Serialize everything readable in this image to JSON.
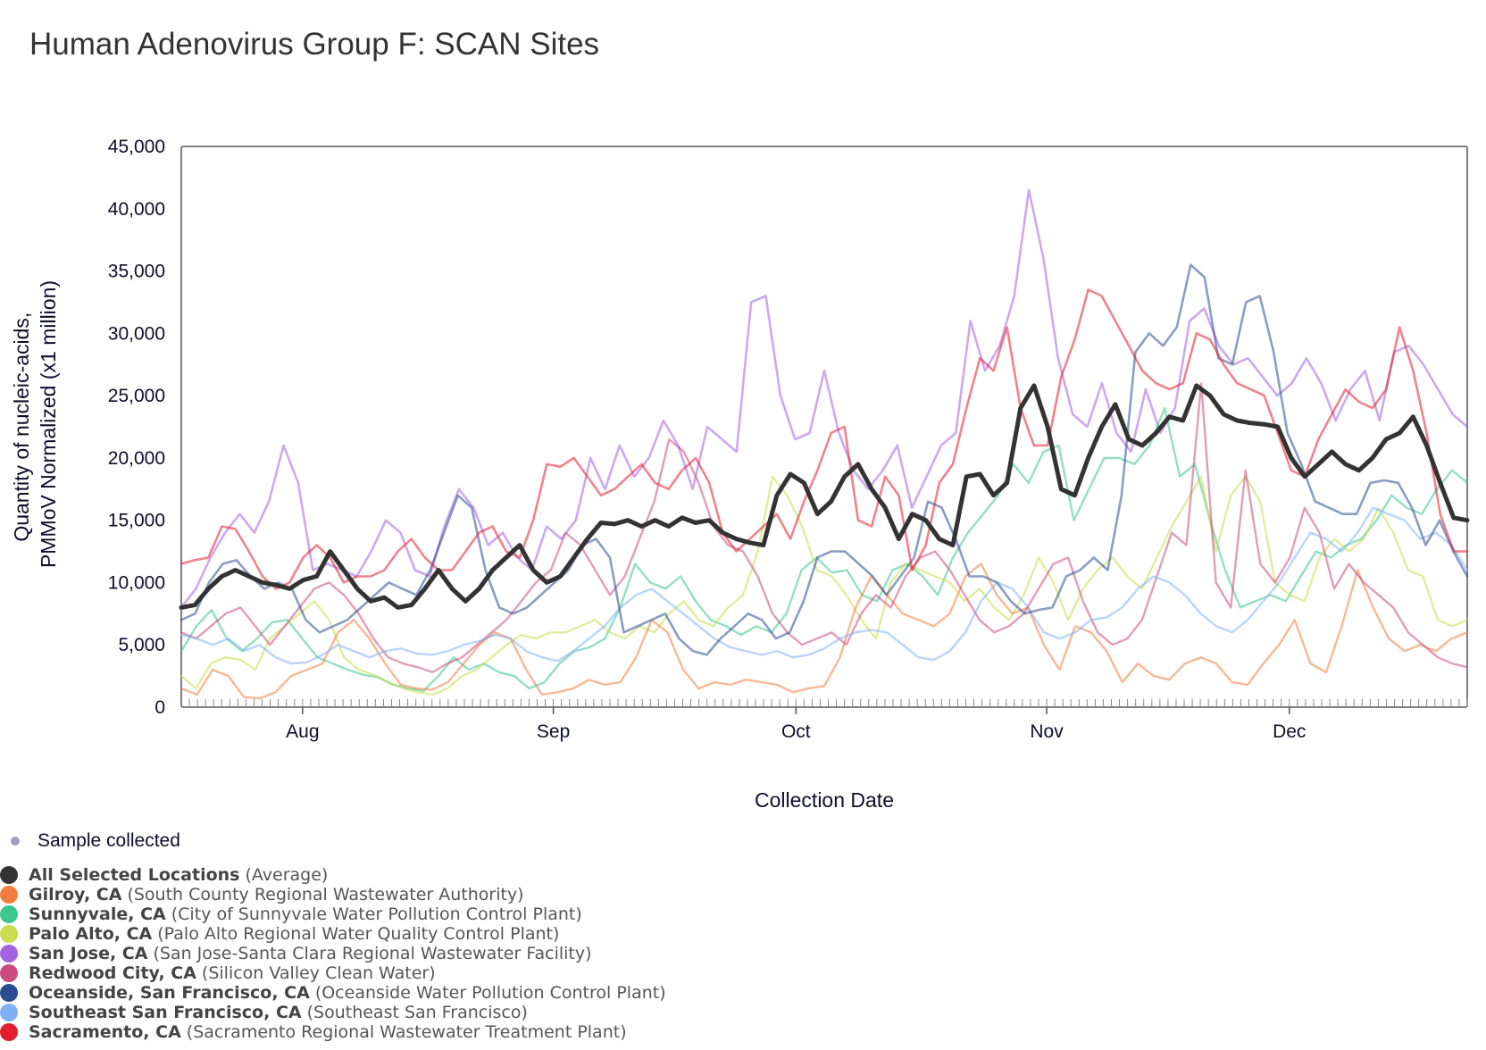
{
  "title": "Human Adenovirus Group F: SCAN Sites",
  "sample_legend": "Sample collected",
  "colors": {
    "avg": "#333333",
    "gilroy": "#f07d3f",
    "sunnyvale": "#3cc58e",
    "paloalto": "#c9dd4e",
    "sanjose": "#a363e0",
    "redwood": "#c94c7d",
    "oceanside": "#294d8f",
    "southeast": "#7fb0f5",
    "sacramento": "#e11d2e"
  },
  "legend": [
    {
      "key": "avg",
      "name": "All Selected Locations",
      "facility": "(Average)"
    },
    {
      "key": "gilroy",
      "name": "Gilroy, CA",
      "facility": "(South County Regional Wastewater Authority)"
    },
    {
      "key": "sunnyvale",
      "name": "Sunnyvale, CA",
      "facility": "(City of Sunnyvale Water Pollution Control Plant)"
    },
    {
      "key": "paloalto",
      "name": "Palo Alto, CA",
      "facility": "(Palo Alto Regional Water Quality Control Plant)"
    },
    {
      "key": "sanjose",
      "name": "San Jose, CA",
      "facility": "(San Jose-Santa Clara Regional Wastewater Facility)"
    },
    {
      "key": "redwood",
      "name": "Redwood City, CA",
      "facility": "(Silicon Valley Clean Water)"
    },
    {
      "key": "oceanside",
      "name": "Oceanside, San Francisco, CA",
      "facility": "(Oceanside Water Pollution Control Plant)"
    },
    {
      "key": "southeast",
      "name": "Southeast San Francisco, CA",
      "facility": "(Southeast San Francisco)"
    },
    {
      "key": "sacramento",
      "name": "Sacramento, CA",
      "facility": "(Sacramento Regional Wastewater Treatment Plant)"
    }
  ],
  "chart_data": {
    "type": "line",
    "title": "Human Adenovirus Group F: SCAN Sites",
    "xlabel": "Collection Date",
    "ylabel": "Quantity of nucleic-acids, PMMoV Normalized (x1 million)",
    "ylabel_lines": [
      "Quantity of nucleic-acids,",
      "PMMoV Normalized (x1 million)"
    ],
    "ylim": [
      0,
      45000
    ],
    "y_ticks": [
      0,
      5000,
      10000,
      15000,
      20000,
      25000,
      30000,
      35000,
      40000,
      45000
    ],
    "y_tick_labels": [
      "0",
      "5,000",
      "10,000",
      "15,000",
      "20,000",
      "25,000",
      "30,000",
      "35,000",
      "40,000",
      "45,000"
    ],
    "x_domain_days": [
      0,
      159
    ],
    "x_ticks": [
      {
        "day": 15,
        "label": "Aug"
      },
      {
        "day": 46,
        "label": "Sep"
      },
      {
        "day": 76,
        "label": "Oct"
      },
      {
        "day": 107,
        "label": "Nov"
      },
      {
        "day": 137,
        "label": "Dec"
      }
    ],
    "x_start_day": 0,
    "x_step_days": 3,
    "series": [
      {
        "key": "sanjose",
        "name": "San Jose, CA",
        "width": 2.6,
        "opacity": 0.55,
        "values": [
          8000,
          9500,
          12000,
          14000,
          15500,
          14000,
          16500,
          21000,
          18000,
          11000,
          11500,
          11000,
          10500,
          12500,
          15000,
          14000,
          11000,
          10500,
          14500,
          17500,
          16000,
          13000,
          14000,
          12000,
          11000,
          14500,
          13500,
          15000,
          20000,
          17500,
          21000,
          18500,
          20000,
          23000,
          21000,
          17500,
          22500,
          21500,
          20500,
          32500,
          33000,
          25000,
          21500,
          22000,
          27000,
          22000,
          19000,
          17500,
          19000,
          21000,
          16000,
          18500,
          21000,
          22000,
          31000,
          27000,
          29000,
          33000,
          41500,
          36000,
          28000,
          23500,
          22500,
          26000,
          22000,
          20500,
          25500,
          22000,
          24000,
          31000,
          32000,
          29000,
          27500,
          28000,
          26500,
          25000,
          26000,
          28000,
          26000,
          23000,
          25500,
          27000,
          23000,
          28500,
          29000,
          27500,
          25500,
          23500,
          22500
        ]
      },
      {
        "key": "sunnyvale",
        "name": "Sunnyvale, CA",
        "width": 2.4,
        "opacity": 0.55,
        "values": [
          4500,
          6500,
          7800,
          5500,
          4500,
          5500,
          6800,
          7000,
          5500,
          4000,
          3500,
          3000,
          2600,
          2400,
          1800,
          1500,
          1300,
          2500,
          4000,
          3000,
          3500,
          2800,
          2500,
          1500,
          2000,
          3500,
          4500,
          4800,
          5500,
          8000,
          11500,
          10000,
          9500,
          10500,
          8500,
          7000,
          6500,
          5800,
          6500,
          6000,
          7500,
          11000,
          12000,
          10800,
          11000,
          9000,
          8500,
          11000,
          11500,
          10500,
          9000,
          12000,
          14000,
          15500,
          17000,
          19500,
          18000,
          20500,
          21000,
          15000,
          17500,
          20000,
          20000,
          19500,
          21000,
          24000,
          18500,
          19500,
          15000,
          11000,
          8000,
          8500,
          9000,
          8500,
          10500,
          12500,
          12000,
          13000,
          13500,
          15000,
          17000,
          16000,
          15500,
          17500,
          19000,
          18000
        ]
      },
      {
        "key": "paloalto",
        "name": "Palo Alto, CA",
        "width": 2.4,
        "opacity": 0.55,
        "values": [
          2500,
          1500,
          3500,
          4000,
          3800,
          3000,
          5500,
          6500,
          7500,
          8500,
          7000,
          4000,
          3000,
          2600,
          2000,
          1500,
          1200,
          1000,
          1500,
          2500,
          3000,
          4000,
          5000,
          5800,
          5500,
          6000,
          6000,
          6500,
          7000,
          6000,
          5500,
          6500,
          6000,
          7500,
          8500,
          7000,
          6500,
          8000,
          9000,
          12500,
          18500,
          17000,
          14500,
          11000,
          10500,
          9000,
          7000,
          5500,
          10000,
          11500,
          11000,
          10500,
          10000,
          8500,
          9500,
          8000,
          7000,
          9000,
          12000,
          10000,
          7000,
          9500,
          11000,
          12000,
          10500,
          9500,
          12000,
          14500,
          16500,
          18500,
          12500,
          17000,
          18500,
          16500,
          10000,
          9000,
          8500,
          12000,
          13500,
          12500,
          13500,
          16000,
          14000,
          11000,
          10500,
          7000,
          6500,
          7000
        ]
      },
      {
        "key": "gilroy",
        "name": "Gilroy, CA",
        "width": 2.4,
        "opacity": 0.55,
        "values": [
          1500,
          1000,
          3000,
          2500,
          800,
          700,
          1200,
          2500,
          3000,
          3500,
          6000,
          7000,
          5500,
          3500,
          1800,
          1500,
          1400,
          2000,
          3500,
          5000,
          6000,
          5500,
          3000,
          1000,
          1200,
          1500,
          2200,
          1800,
          2000,
          4000,
          7000,
          6000,
          3000,
          1500,
          2000,
          1800,
          2200,
          2000,
          1800,
          1200,
          1500,
          1700,
          4000,
          8000,
          10500,
          9000,
          7500,
          7000,
          6500,
          7500,
          10500,
          11500,
          9000,
          7500,
          8000,
          5000,
          3000,
          6500,
          6000,
          4500,
          2000,
          3500,
          2500,
          2200,
          3500,
          4000,
          3500,
          2000,
          1800,
          3500,
          5000,
          7000,
          3500,
          2800,
          6500,
          11000,
          8000,
          5500,
          4500,
          5000,
          4500,
          5500,
          6000
        ]
      },
      {
        "key": "redwood",
        "name": "Redwood City, CA",
        "width": 2.4,
        "opacity": 0.55,
        "values": [
          6000,
          5500,
          6500,
          7500,
          8000,
          6500,
          5000,
          6500,
          8000,
          9500,
          10000,
          9000,
          7500,
          5500,
          4000,
          3500,
          3200,
          2800,
          3500,
          4000,
          5000,
          6000,
          7000,
          8500,
          10000,
          11000,
          14000,
          13000,
          11000,
          9000,
          10500,
          13500,
          16500,
          21500,
          20500,
          18000,
          14500,
          13000,
          12500,
          10500,
          7500,
          6000,
          5000,
          5500,
          6000,
          5000,
          7500,
          9000,
          8000,
          10500,
          12000,
          12500,
          11000,
          9000,
          7000,
          6000,
          6500,
          7500,
          9500,
          11500,
          12000,
          8500,
          6000,
          5000,
          5500,
          7000,
          10500,
          14000,
          13000,
          26000,
          10000,
          8000,
          19000,
          11500,
          10000,
          12000,
          16000,
          14000,
          9500,
          11500,
          10000,
          9000,
          8000,
          6000,
          5000,
          4000,
          3500,
          3200
        ]
      },
      {
        "key": "southeast",
        "name": "Southeast San Francisco, CA",
        "width": 2.4,
        "opacity": 0.55,
        "values": [
          5800,
          5500,
          5000,
          5500,
          4500,
          5000,
          4000,
          3500,
          3600,
          4200,
          5000,
          4500,
          4000,
          4500,
          4700,
          4300,
          4200,
          4500,
          5000,
          5300,
          5800,
          5500,
          4500,
          4000,
          3700,
          4500,
          5500,
          6500,
          8000,
          9000,
          9500,
          8500,
          7500,
          6500,
          5500,
          4800,
          4500,
          4200,
          4500,
          4000,
          4200,
          4700,
          5500,
          6000,
          6200,
          6000,
          5000,
          4000,
          3800,
          4500,
          6000,
          8500,
          10000,
          9500,
          8000,
          6000,
          5500,
          6000,
          7000,
          7200,
          8000,
          9500,
          10500,
          10000,
          9000,
          7500,
          6500,
          6000,
          7000,
          8500,
          10000,
          12000,
          14000,
          13500,
          12500,
          14000,
          16000,
          15500,
          15000,
          13500,
          14000,
          13000,
          11000
        ]
      },
      {
        "key": "oceanside",
        "name": "Oceanside, San Francisco, CA",
        "width": 2.6,
        "opacity": 0.55,
        "values": [
          7000,
          7500,
          10000,
          11500,
          11800,
          10500,
          9500,
          10000,
          9500,
          7000,
          6000,
          6500,
          7000,
          8000,
          9000,
          10000,
          9500,
          9000,
          11000,
          14000,
          17000,
          16000,
          11000,
          8000,
          7500,
          8000,
          9000,
          10000,
          11000,
          13000,
          13500,
          12000,
          6000,
          6500,
          7000,
          7500,
          5500,
          4500,
          4200,
          5500,
          6500,
          7500,
          7000,
          5500,
          6000,
          8500,
          12000,
          12500,
          12500,
          11500,
          10500,
          9000,
          10500,
          12000,
          16500,
          16000,
          13500,
          10500,
          10500,
          10000,
          8500,
          7500,
          7800,
          8000,
          10500,
          11000,
          12000,
          11000,
          17000,
          28500,
          30000,
          29000,
          30500,
          35500,
          34500,
          28000,
          27500,
          32500,
          33000,
          28500,
          22000,
          19500,
          16500,
          16000,
          15500,
          15500,
          18000,
          18200,
          18000,
          16000,
          13000,
          15000,
          12500,
          10500
        ]
      },
      {
        "key": "sacramento",
        "name": "Sacramento, CA",
        "width": 2.6,
        "opacity": 0.55,
        "values": [
          11500,
          11800,
          12000,
          14500,
          14300,
          12500,
          10500,
          9500,
          10000,
          12000,
          13000,
          12000,
          10000,
          10500,
          10500,
          11000,
          12500,
          13500,
          12000,
          11000,
          11000,
          12500,
          14000,
          14500,
          12500,
          12000,
          15000,
          19500,
          19300,
          20000,
          18500,
          17000,
          17500,
          18500,
          19500,
          18000,
          17500,
          19000,
          20000,
          18000,
          14000,
          12500,
          13500,
          14500,
          15500,
          13500,
          16500,
          19000,
          22000,
          22500,
          15000,
          14500,
          18500,
          17000,
          11000,
          13000,
          18000,
          19500,
          24000,
          28000,
          27000,
          30500,
          24000,
          21000,
          21000,
          26500,
          29500,
          33500,
          33000,
          31000,
          29000,
          27000,
          26000,
          25500,
          26000,
          30000,
          29500,
          27500,
          26000,
          25500,
          25000,
          22000,
          19000,
          18500,
          21500,
          23500,
          25500,
          24500,
          24000,
          25500,
          30500,
          27000,
          22000,
          15500,
          12500,
          12500
        ]
      },
      {
        "key": "avg",
        "name": "All Selected Locations",
        "width": 5,
        "opacity": 1,
        "values": [
          8000,
          8200,
          9500,
          10500,
          11000,
          10500,
          10000,
          9800,
          9500,
          10200,
          10500,
          12500,
          11000,
          9500,
          8500,
          8800,
          8000,
          8200,
          9500,
          11000,
          9500,
          8500,
          9500,
          11000,
          12000,
          13000,
          11000,
          10000,
          10500,
          12000,
          13500,
          14800,
          14700,
          15000,
          14500,
          15000,
          14500,
          15200,
          14800,
          15000,
          14000,
          13500,
          13200,
          13000,
          17000,
          18700,
          18000,
          15500,
          16500,
          18500,
          19500,
          17500,
          16000,
          13500,
          15500,
          15000,
          13500,
          13000,
          18500,
          18700,
          17000,
          18000,
          24000,
          25800,
          22500,
          17500,
          17000,
          20000,
          22500,
          24300,
          21500,
          21000,
          22000,
          23300,
          23000,
          25800,
          25000,
          23500,
          23000,
          22800,
          22700,
          22500,
          20000,
          18500,
          19500,
          20500,
          19500,
          19000,
          20000,
          21500,
          22000,
          23300,
          21000,
          18000,
          15200,
          15000
        ]
      }
    ]
  }
}
